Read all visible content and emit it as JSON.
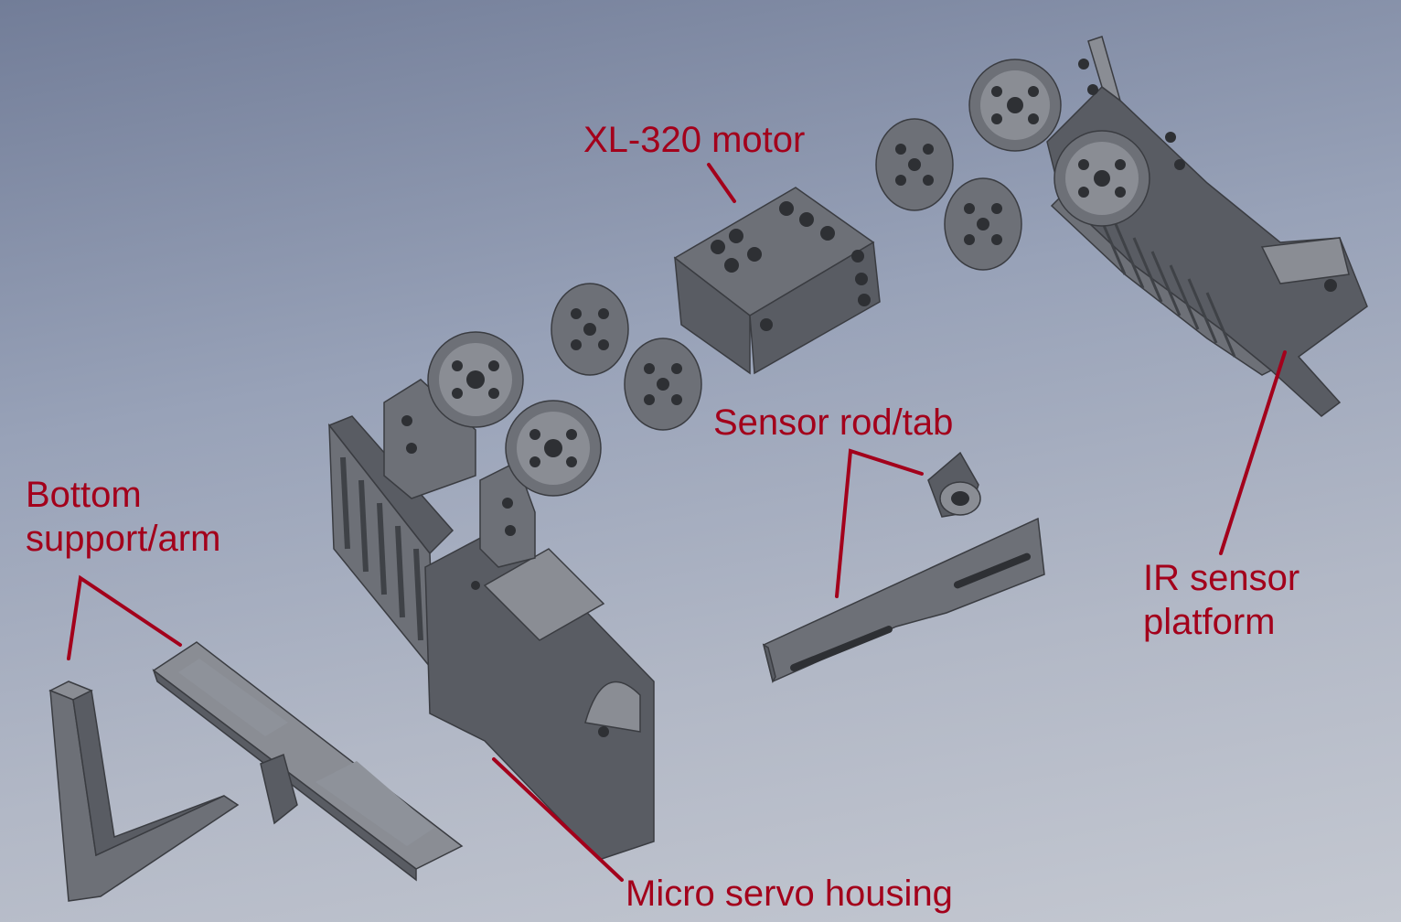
{
  "labels": {
    "motor": "XL-320 motor",
    "sensor_rod": "Sensor rod/tab",
    "bottom_support_line1": "Bottom",
    "bottom_support_line2": "support/arm",
    "ir_platform_line1": "IR sensor",
    "ir_platform_line2": "platform",
    "servo_housing": "Micro servo housing"
  },
  "colors": {
    "label_text": "#a3001b",
    "part": "#65686f",
    "background_top": "#727d98",
    "background_bottom": "#c4c8d1"
  }
}
